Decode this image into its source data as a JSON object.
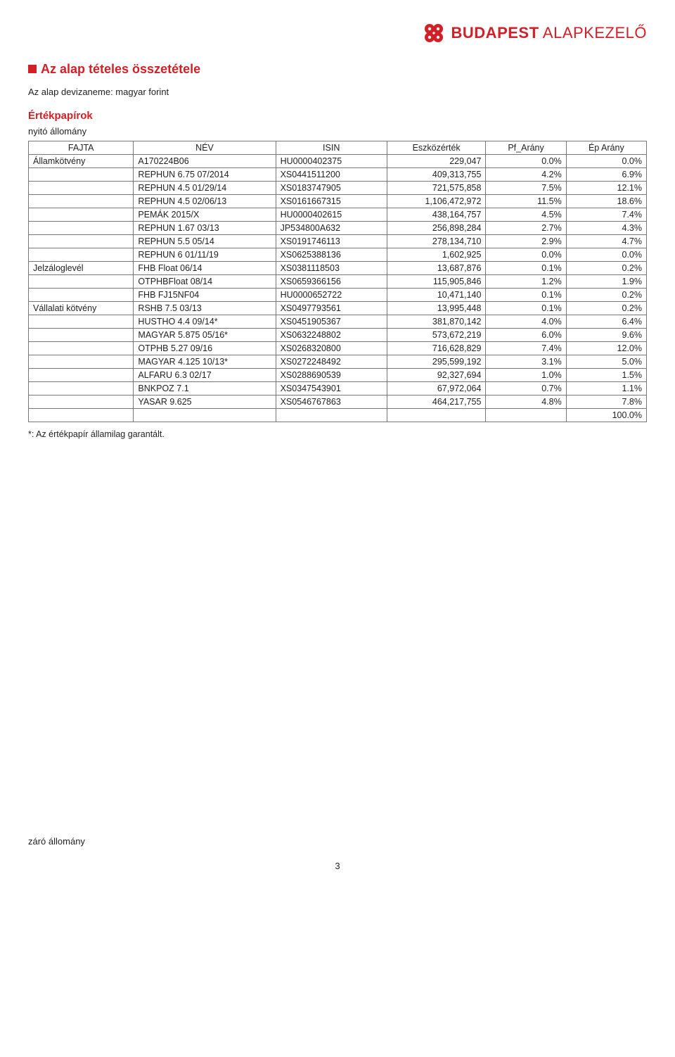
{
  "brand": {
    "name": "BUDAPEST",
    "suffix": " ALAPKEZELŐ",
    "color": "#d32027"
  },
  "section": {
    "title": "Az alap tételes összetétele",
    "subtitle": "Az alap devizaneme: magyar forint",
    "subhead": "Értékpapírok",
    "openingLabel": "nyitó állomány",
    "footnote": "*: Az értékpapír államilag garantált.",
    "closingLabel": "záró állomány"
  },
  "table": {
    "columns": [
      "FAJTA",
      "NÉV",
      "ISIN",
      "Eszközérték",
      "Pf_Arány",
      "Ép Arány"
    ],
    "rows": [
      [
        "Államkötvény",
        "A170224B06",
        "HU0000402375",
        "229,047",
        "0.0%",
        "0.0%"
      ],
      [
        "",
        "REPHUN 6.75 07/2014",
        "XS0441511200",
        "409,313,755",
        "4.2%",
        "6.9%"
      ],
      [
        "",
        "REPHUN 4.5 01/29/14",
        "XS0183747905",
        "721,575,858",
        "7.5%",
        "12.1%"
      ],
      [
        "",
        "REPHUN 4.5 02/06/13",
        "XS0161667315",
        "1,106,472,972",
        "11.5%",
        "18.6%"
      ],
      [
        "",
        "PEMÁK 2015/X",
        "HU0000402615",
        "438,164,757",
        "4.5%",
        "7.4%"
      ],
      [
        "",
        "REPHUN 1.67 03/13",
        "JP534800A632",
        "256,898,284",
        "2.7%",
        "4.3%"
      ],
      [
        "",
        "REPHUN 5.5 05/14",
        "XS0191746113",
        "278,134,710",
        "2.9%",
        "4.7%"
      ],
      [
        "",
        "REPHUN 6 01/11/19",
        "XS0625388136",
        "1,602,925",
        "0.0%",
        "0.0%"
      ],
      [
        "Jelzáloglevél",
        "FHB Float 06/14",
        "XS0381118503",
        "13,687,876",
        "0.1%",
        "0.2%"
      ],
      [
        "",
        "OTPHBFloat 08/14",
        "XS0659366156",
        "115,905,846",
        "1.2%",
        "1.9%"
      ],
      [
        "",
        "FHB FJ15NF04",
        "HU0000652722",
        "10,471,140",
        "0.1%",
        "0.2%"
      ],
      [
        "Vállalati kötvény",
        "RSHB 7.5 03/13",
        "XS0497793561",
        "13,995,448",
        "0.1%",
        "0.2%"
      ],
      [
        "",
        "HUSTHO 4.4 09/14*",
        "XS0451905367",
        "381,870,142",
        "4.0%",
        "6.4%"
      ],
      [
        "",
        "MAGYAR 5.875 05/16*",
        "XS0632248802",
        "573,672,219",
        "6.0%",
        "9.6%"
      ],
      [
        "",
        "OTPHB 5.27 09/16",
        "XS0268320800",
        "716,628,829",
        "7.4%",
        "12.0%"
      ],
      [
        "",
        "MAGYAR 4.125 10/13*",
        "XS0272248492",
        "295,599,192",
        "3.1%",
        "5.0%"
      ],
      [
        "",
        "ALFARU 6.3 02/17",
        "XS0288690539",
        "92,327,694",
        "1.0%",
        "1.5%"
      ],
      [
        "",
        "BNKPOZ 7.1",
        "XS0347543901",
        "67,972,064",
        "0.7%",
        "1.1%"
      ],
      [
        "",
        "YASAR 9.625",
        "XS0546767863",
        "464,217,755",
        "4.8%",
        "7.8%"
      ],
      [
        "",
        "",
        "",
        "",
        "",
        "100.0%"
      ]
    ]
  },
  "pageNumber": "3"
}
